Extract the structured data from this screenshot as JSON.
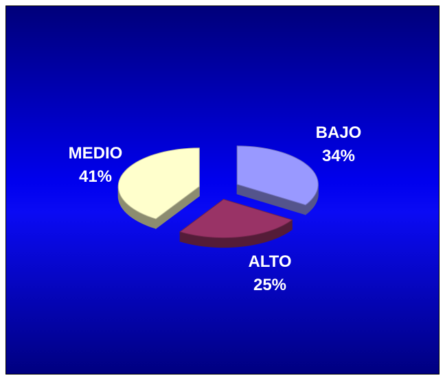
{
  "chart_data": {
    "type": "pie",
    "style": "3d-exploded",
    "categories": [
      "BAJO",
      "ALTO",
      "MEDIO"
    ],
    "values": [
      34,
      25,
      41
    ],
    "value_labels": [
      "34%",
      "25%",
      "41%"
    ],
    "colors": {
      "BAJO": "#9999ff",
      "ALTO": "#993366",
      "MEDIO": "#ffffcc",
      "background_top": "#00007a",
      "background_mid": "#0000ee",
      "background_bottom": "#000080"
    },
    "legend": "none"
  }
}
